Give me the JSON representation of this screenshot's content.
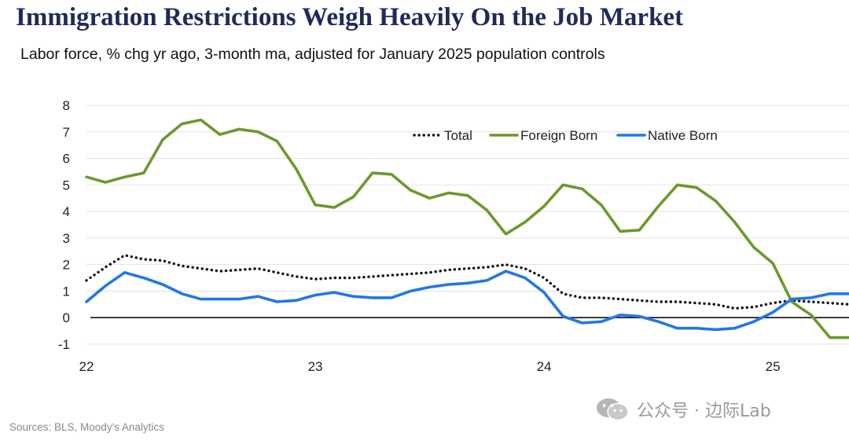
{
  "title": "Immigration Restrictions Weigh Heavily On the Job Market",
  "subtitle": "Labor force, % chg yr ago, 3-month ma, adjusted for January 2025 population controls",
  "source": "Sources: BLS, Moody's Analytics",
  "watermark": "公众号 · 边际Lab",
  "chart_data": {
    "type": "line",
    "ylim": [
      -1,
      8
    ],
    "y_ticks": [
      8,
      7,
      6,
      5,
      4,
      3,
      2,
      1,
      0,
      -1
    ],
    "x_tick_labels": [
      "22",
      "23",
      "24",
      "25"
    ],
    "x_tick_positions": [
      2022,
      2023,
      2024,
      2025
    ],
    "xlim": [
      2022,
      2025.333
    ],
    "grid": true,
    "zero_line": true,
    "legend_position": "top-right",
    "series": [
      {
        "name": "Total",
        "style": "dotted",
        "color": "#111111",
        "points": [
          [
            2022,
            1.4
          ],
          [
            2022.083,
            1.9
          ],
          [
            2022.167,
            2.35
          ],
          [
            2022.25,
            2.2
          ],
          [
            2022.333,
            2.15
          ],
          [
            2022.417,
            1.95
          ],
          [
            2022.5,
            1.85
          ],
          [
            2022.583,
            1.75
          ],
          [
            2022.667,
            1.8
          ],
          [
            2022.75,
            1.85
          ],
          [
            2022.833,
            1.7
          ],
          [
            2022.917,
            1.55
          ],
          [
            2023,
            1.45
          ],
          [
            2023.083,
            1.5
          ],
          [
            2023.167,
            1.5
          ],
          [
            2023.25,
            1.55
          ],
          [
            2023.333,
            1.6
          ],
          [
            2023.417,
            1.65
          ],
          [
            2023.5,
            1.7
          ],
          [
            2023.583,
            1.8
          ],
          [
            2023.667,
            1.85
          ],
          [
            2023.75,
            1.9
          ],
          [
            2023.833,
            2.0
          ],
          [
            2023.917,
            1.85
          ],
          [
            2024,
            1.5
          ],
          [
            2024.083,
            0.9
          ],
          [
            2024.167,
            0.75
          ],
          [
            2024.25,
            0.75
          ],
          [
            2024.333,
            0.7
          ],
          [
            2024.417,
            0.65
          ],
          [
            2024.5,
            0.6
          ],
          [
            2024.583,
            0.6
          ],
          [
            2024.667,
            0.55
          ],
          [
            2024.75,
            0.5
          ],
          [
            2024.833,
            0.35
          ],
          [
            2024.917,
            0.4
          ],
          [
            2025,
            0.55
          ],
          [
            2025.083,
            0.65
          ],
          [
            2025.167,
            0.6
          ],
          [
            2025.25,
            0.55
          ],
          [
            2025.333,
            0.5
          ]
        ]
      },
      {
        "name": "Foreign Born",
        "style": "solid",
        "color": "#6a9a2c",
        "points": [
          [
            2022,
            5.3
          ],
          [
            2022.083,
            5.1
          ],
          [
            2022.167,
            5.3
          ],
          [
            2022.25,
            5.45
          ],
          [
            2022.333,
            6.7
          ],
          [
            2022.417,
            7.3
          ],
          [
            2022.5,
            7.45
          ],
          [
            2022.583,
            6.9
          ],
          [
            2022.667,
            7.1
          ],
          [
            2022.75,
            7.0
          ],
          [
            2022.833,
            6.65
          ],
          [
            2022.917,
            5.6
          ],
          [
            2023,
            4.25
          ],
          [
            2023.083,
            4.15
          ],
          [
            2023.167,
            4.55
          ],
          [
            2023.25,
            5.45
          ],
          [
            2023.333,
            5.4
          ],
          [
            2023.417,
            4.8
          ],
          [
            2023.5,
            4.5
          ],
          [
            2023.583,
            4.7
          ],
          [
            2023.667,
            4.6
          ],
          [
            2023.75,
            4.05
          ],
          [
            2023.833,
            3.15
          ],
          [
            2023.917,
            3.6
          ],
          [
            2024,
            4.2
          ],
          [
            2024.083,
            5.0
          ],
          [
            2024.167,
            4.85
          ],
          [
            2024.25,
            4.25
          ],
          [
            2024.333,
            3.25
          ],
          [
            2024.417,
            3.3
          ],
          [
            2024.5,
            4.2
          ],
          [
            2024.583,
            5.0
          ],
          [
            2024.667,
            4.9
          ],
          [
            2024.75,
            4.4
          ],
          [
            2024.833,
            3.6
          ],
          [
            2024.917,
            2.65
          ],
          [
            2025,
            2.05
          ],
          [
            2025.083,
            0.6
          ],
          [
            2025.167,
            0.1
          ],
          [
            2025.25,
            -0.75
          ],
          [
            2025.333,
            -0.75
          ]
        ]
      },
      {
        "name": "Native Born",
        "style": "solid",
        "color": "#2277e8",
        "points": [
          [
            2022,
            0.6
          ],
          [
            2022.083,
            1.2
          ],
          [
            2022.167,
            1.7
          ],
          [
            2022.25,
            1.5
          ],
          [
            2022.333,
            1.25
          ],
          [
            2022.417,
            0.9
          ],
          [
            2022.5,
            0.7
          ],
          [
            2022.583,
            0.7
          ],
          [
            2022.667,
            0.7
          ],
          [
            2022.75,
            0.8
          ],
          [
            2022.833,
            0.6
          ],
          [
            2022.917,
            0.65
          ],
          [
            2023,
            0.85
          ],
          [
            2023.083,
            0.95
          ],
          [
            2023.167,
            0.8
          ],
          [
            2023.25,
            0.75
          ],
          [
            2023.333,
            0.75
          ],
          [
            2023.417,
            1.0
          ],
          [
            2023.5,
            1.15
          ],
          [
            2023.583,
            1.25
          ],
          [
            2023.667,
            1.3
          ],
          [
            2023.75,
            1.4
          ],
          [
            2023.833,
            1.75
          ],
          [
            2023.917,
            1.5
          ],
          [
            2024,
            0.95
          ],
          [
            2024.083,
            0.05
          ],
          [
            2024.167,
            -0.2
          ],
          [
            2024.25,
            -0.15
          ],
          [
            2024.333,
            0.1
          ],
          [
            2024.417,
            0.05
          ],
          [
            2024.5,
            -0.15
          ],
          [
            2024.583,
            -0.4
          ],
          [
            2024.667,
            -0.4
          ],
          [
            2024.75,
            -0.45
          ],
          [
            2024.833,
            -0.4
          ],
          [
            2024.917,
            -0.15
          ],
          [
            2025,
            0.2
          ],
          [
            2025.083,
            0.7
          ],
          [
            2025.167,
            0.75
          ],
          [
            2025.25,
            0.9
          ],
          [
            2025.333,
            0.9
          ]
        ]
      }
    ]
  }
}
